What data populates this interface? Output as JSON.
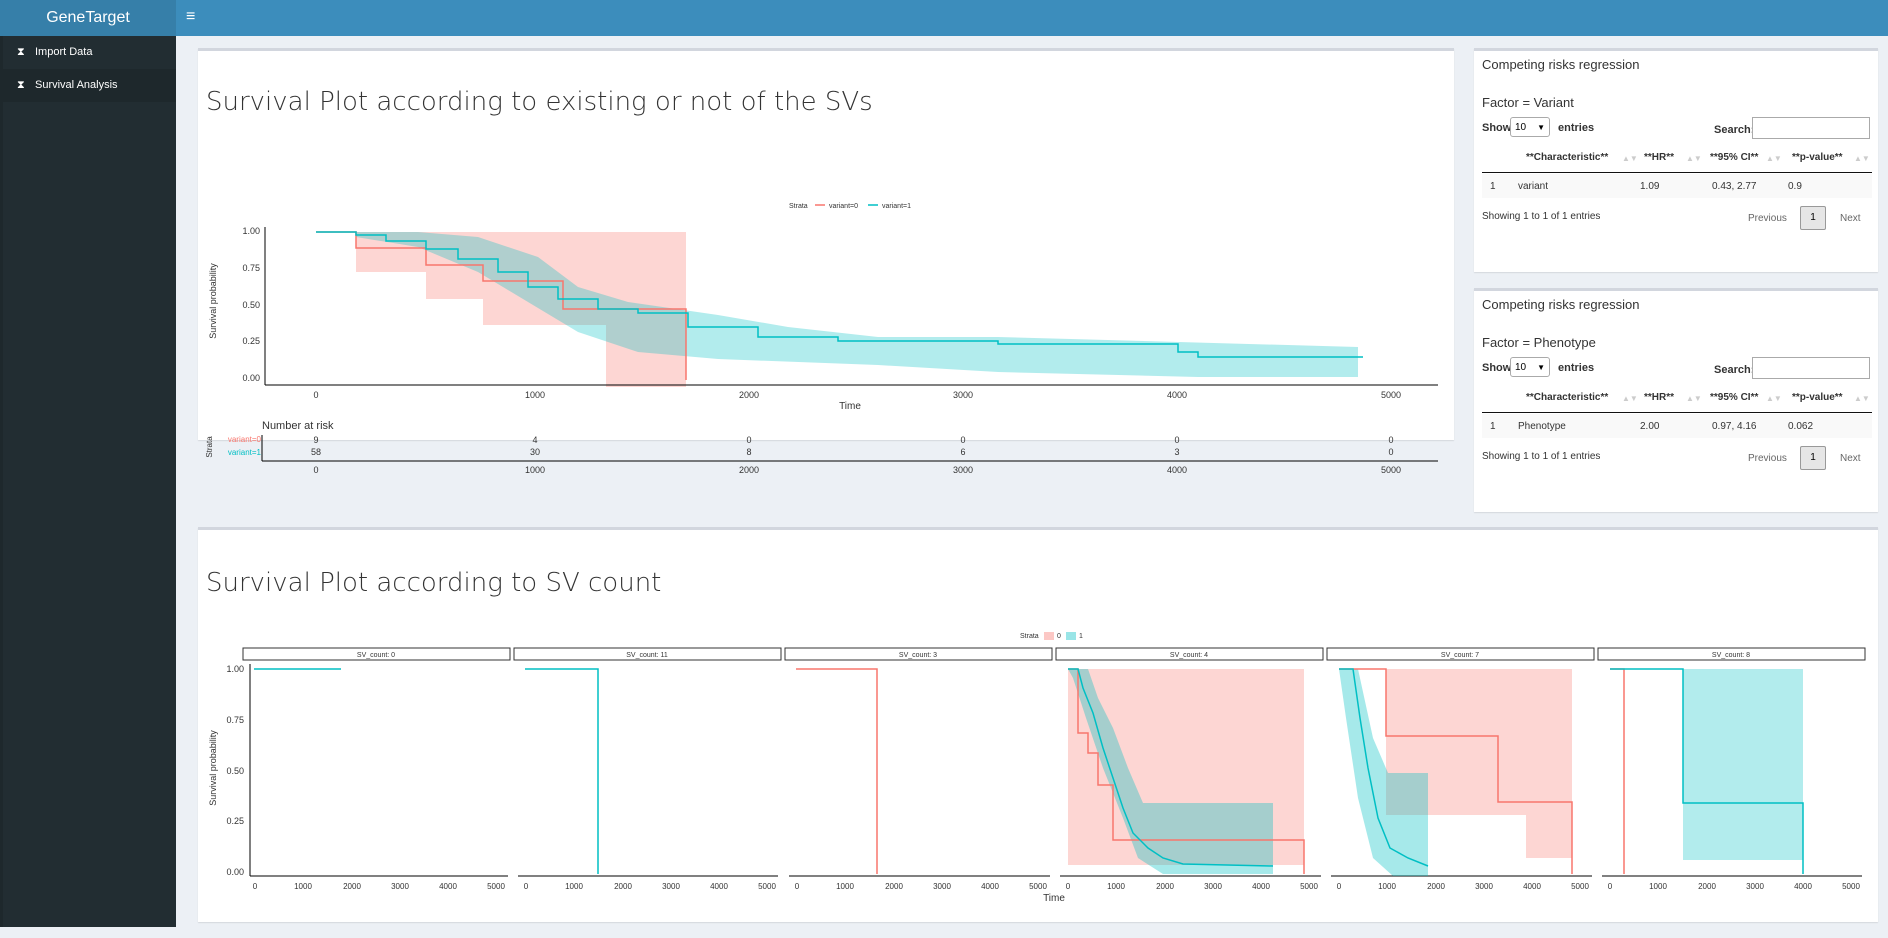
{
  "app": {
    "title": "GeneTarget",
    "menu_toggle": "≡"
  },
  "sidebar": {
    "items": [
      {
        "label": "Import Data",
        "icon": "hourglass-icon"
      },
      {
        "label": "Survival Analysis",
        "icon": "hourglass-icon"
      }
    ]
  },
  "plot1": {
    "title": "Survival Plot according to existing or not of the SVs",
    "legend": {
      "title": "Strata",
      "entries": [
        "variant=0",
        "variant=1"
      ]
    },
    "ylabel": "Survival probability",
    "xlabel": "Time",
    "yticks": [
      "1.00",
      "0.75",
      "0.50",
      "0.25",
      "0.00"
    ],
    "xticks": [
      "0",
      "1000",
      "2000",
      "3000",
      "4000",
      "5000"
    ],
    "risk_title": "Number at risk",
    "risk_ylabel": "Strata",
    "risk_rows": [
      {
        "label": "variant=0",
        "values": [
          "9",
          "4",
          "0",
          "0",
          "0",
          "0"
        ]
      },
      {
        "label": "variant=1",
        "values": [
          "58",
          "30",
          "8",
          "6",
          "3",
          "0"
        ]
      }
    ],
    "colors": {
      "variant0": "#f8766d",
      "variant1": "#00bfc4"
    }
  },
  "plot2": {
    "title": "Survival Plot according to SV count",
    "legend": {
      "title": "Strata",
      "entries": [
        "0",
        "1"
      ]
    },
    "ylabel": "Survival probability",
    "xlabel": "Time",
    "yticks": [
      "1.00",
      "0.75",
      "0.50",
      "0.25",
      "0.00"
    ],
    "xticks": [
      "0",
      "1000",
      "2000",
      "3000",
      "4000",
      "5000"
    ],
    "panels": [
      "SV_count: 0",
      "SV_count: 11",
      "SV_count: 3",
      "SV_count: 4",
      "SV_count: 7",
      "SV_count: 8"
    ]
  },
  "table1": {
    "title": "Competing risks regression",
    "factor": "Factor = Variant",
    "show_label": "Show",
    "show_value": "10",
    "entries_label": "entries",
    "search_label": "Search:",
    "headers": [
      "**Characteristic**",
      "**HR**",
      "**95% CI**",
      "**p-value**"
    ],
    "rows": [
      {
        "n": "1",
        "characteristic": "variant",
        "hr": "1.09",
        "ci": "0.43, 2.77",
        "p": "0.9"
      }
    ],
    "info": "Showing 1 to 1 of 1 entries",
    "prev": "Previous",
    "page": "1",
    "next": "Next"
  },
  "table2": {
    "title": "Competing risks regression",
    "factor": "Factor = Phenotype",
    "show_label": "Show",
    "show_value": "10",
    "entries_label": "entries",
    "search_label": "Search:",
    "headers": [
      "**Characteristic**",
      "**HR**",
      "**95% CI**",
      "**p-value**"
    ],
    "rows": [
      {
        "n": "1",
        "characteristic": "Phenotype",
        "hr": "2.00",
        "ci": "0.97, 4.16",
        "p": "0.062"
      }
    ],
    "info": "Showing 1 to 1 of 1 entries",
    "prev": "Previous",
    "page": "1",
    "next": "Next"
  },
  "chart_data": [
    {
      "type": "line",
      "title": "Survival Plot according to existing or not of the SVs",
      "xlabel": "Time",
      "ylabel": "Survival probability",
      "xlim": [
        0,
        5000
      ],
      "ylim": [
        0,
        1
      ],
      "series": [
        {
          "name": "variant=0",
          "x": [
            0,
            180,
            560,
            800,
            1170,
            1730,
            1730
          ],
          "y": [
            1.0,
            0.89,
            0.78,
            0.67,
            0.48,
            0.48,
            0.0
          ]
        },
        {
          "name": "variant=1",
          "x": [
            0,
            230,
            400,
            600,
            800,
            1000,
            1200,
            1400,
            1700,
            2000,
            2300,
            3000,
            4000,
            4850
          ],
          "y": [
            1.0,
            0.97,
            0.9,
            0.82,
            0.7,
            0.55,
            0.4,
            0.3,
            0.25,
            0.18,
            0.15,
            0.12,
            0.08,
            0.06
          ]
        }
      ]
    },
    {
      "type": "line",
      "title": "Survival Plot according to SV count",
      "xlabel": "Time",
      "ylabel": "Survival probability",
      "xlim": [
        0,
        5000
      ],
      "ylim": [
        0,
        1
      ],
      "facets": [
        {
          "name": "SV_count: 0",
          "series": [
            {
              "name": "1",
              "x": [
                0,
                1750
              ],
              "y": [
                1.0,
                1.0
              ]
            }
          ]
        },
        {
          "name": "SV_count: 11",
          "series": [
            {
              "name": "1",
              "x": [
                0,
                1500,
                1500
              ],
              "y": [
                1.0,
                1.0,
                0.0
              ]
            }
          ]
        },
        {
          "name": "SV_count: 3",
          "series": [
            {
              "name": "0",
              "x": [
                0,
                1650,
                1650
              ],
              "y": [
                1.0,
                1.0,
                0.0
              ]
            }
          ]
        },
        {
          "name": "SV_count: 4",
          "series": [
            {
              "name": "0",
              "x": [
                0,
                300,
                500,
                800,
                1100,
                1700,
                4850,
                4850
              ],
              "y": [
                1.0,
                0.67,
                0.5,
                0.33,
                0.17,
                0.17,
                0.17,
                0.0
              ]
            },
            {
              "name": "1",
              "x": [
                0,
                300,
                600,
                900,
                1100,
                1400,
                2000,
                4000
              ],
              "y": [
                1.0,
                0.85,
                0.65,
                0.4,
                0.2,
                0.1,
                0.05,
                0.03
              ]
            }
          ]
        },
        {
          "name": "SV_count: 7",
          "series": [
            {
              "name": "0",
              "x": [
                0,
                1200,
                3600,
                4700,
                4700
              ],
              "y": [
                1.0,
                0.67,
                0.33,
                0.33,
                0.0
              ]
            },
            {
              "name": "1",
              "x": [
                0,
                400,
                700,
                900,
                1100,
                1500,
                2300
              ],
              "y": [
                1.0,
                0.8,
                0.4,
                0.25,
                0.12,
                0.05,
                0.05
              ]
            }
          ]
        },
        {
          "name": "SV_count: 8",
          "series": [
            {
              "name": "0",
              "x": [
                0,
                200,
                200
              ],
              "y": [
                1.0,
                1.0,
                0.0
              ]
            },
            {
              "name": "1",
              "x": [
                0,
                1450,
                1450,
                3900,
                3900
              ],
              "y": [
                1.0,
                1.0,
                0.33,
                0.33,
                0.0
              ]
            }
          ]
        }
      ]
    }
  ]
}
